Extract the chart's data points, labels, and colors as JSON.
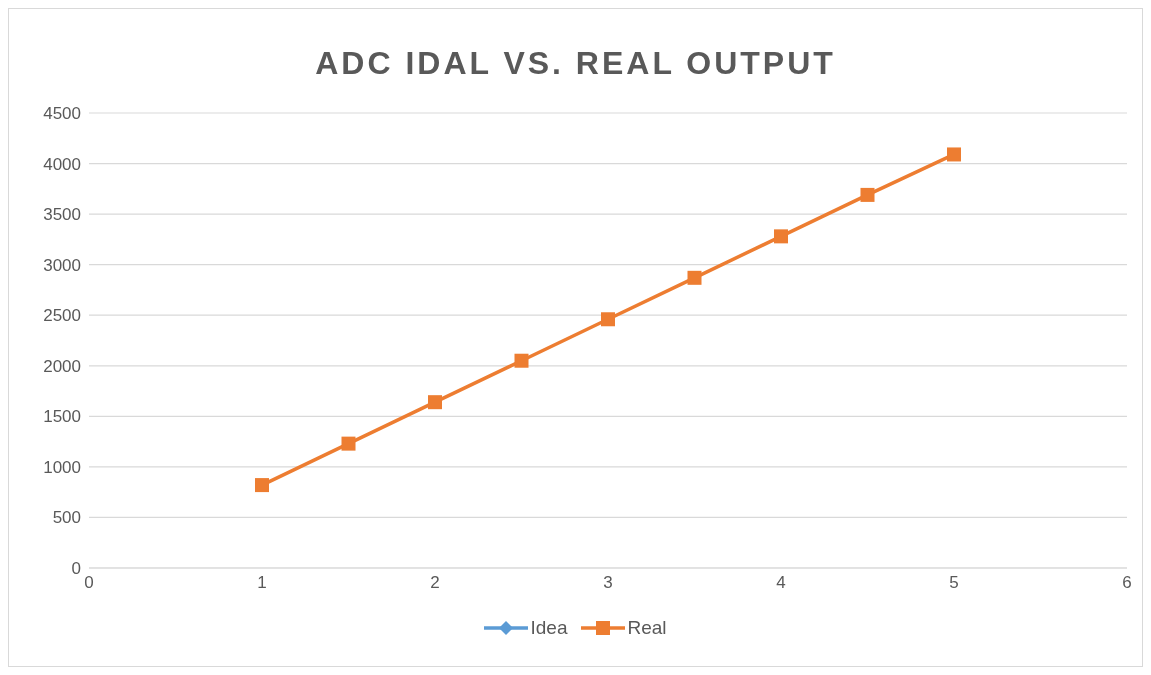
{
  "chart_data": {
    "type": "line",
    "title": "ADC IDAL VS. REAL OUTPUT",
    "x": [
      1,
      1.5,
      2,
      2.5,
      3,
      3.5,
      4,
      4.5,
      5
    ],
    "series": [
      {
        "name": "Idea",
        "color": "#5b9bd5",
        "marker": "diamond",
        "values": [
          null,
          null,
          null,
          null,
          null,
          null,
          null,
          null,
          null
        ]
      },
      {
        "name": "Real",
        "color": "#ed7d31",
        "marker": "square",
        "values": [
          820,
          1230,
          1640,
          2050,
          2460,
          2870,
          3280,
          3690,
          4090
        ]
      }
    ],
    "xlim": [
      0,
      6
    ],
    "xticks": [
      0,
      1,
      2,
      3,
      4,
      5,
      6
    ],
    "ylim": [
      0,
      4500
    ],
    "yticks": [
      0,
      500,
      1000,
      1500,
      2000,
      2500,
      3000,
      3500,
      4000,
      4500
    ],
    "grid": "y",
    "legend": "bottom",
    "line_style": "solid"
  }
}
